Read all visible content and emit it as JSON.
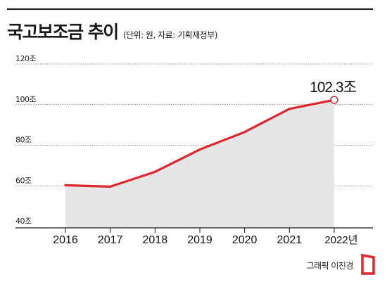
{
  "header": {
    "title": "국고보조금 추이",
    "subtitle": "(단위: 원, 자료: 기획재정부)"
  },
  "chart_data": {
    "type": "area",
    "title": "국고보조금 추이",
    "subtitle": "(단위: 원, 자료: 기획재정부)",
    "x": [
      "2016",
      "2017",
      "2018",
      "2019",
      "2020",
      "2021",
      "2022년"
    ],
    "series": [
      {
        "values": [
          60.3,
          59.6,
          66.9,
          77.9,
          86.5,
          97.9,
          102.3
        ]
      }
    ],
    "ylim": [
      40,
      120
    ],
    "y_ticks": [
      40,
      60,
      80,
      100,
      120
    ],
    "y_tick_labels": [
      "40조",
      "60조",
      "80조",
      "100조",
      "120조"
    ],
    "annotation": {
      "label": "102.3조",
      "x": "2022년",
      "value": 102.3
    },
    "grid": "dotted-horizontal",
    "line_color": "#e0262b",
    "fill_color": "#e6e6e6"
  },
  "footer": {
    "credit": "그래픽 이진경"
  },
  "colors": {
    "accent": "#e0262b",
    "rule": "#1a1a1a"
  }
}
